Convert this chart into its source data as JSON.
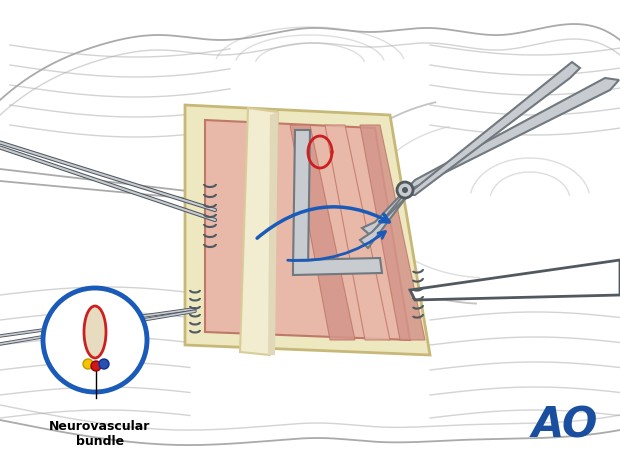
{
  "bg_color": "#ffffff",
  "body_outline_color": "#aaaaaa",
  "rib_color": "#c8c8c8",
  "muscle_pink_light": "#e8b8a8",
  "muscle_pink_mid": "#d4958a",
  "muscle_pink_dark": "#c07868",
  "fat_color": "#ede8c0",
  "fat_edge": "#c8b878",
  "bone_color": "#f2ecd0",
  "bone_edge": "#d8cc98",
  "instr_fill": "#c8ccd0",
  "instr_edge": "#707880",
  "instr_dark": "#505860",
  "blue_arrow": "#1a5ab8",
  "blue_circle": "#1a5ab8",
  "red_color": "#cc2020",
  "nb_label": "Neurovascular\nbundle",
  "ao_color": "#1a4fa0",
  "figsize": [
    6.2,
    4.59
  ],
  "dpi": 100
}
